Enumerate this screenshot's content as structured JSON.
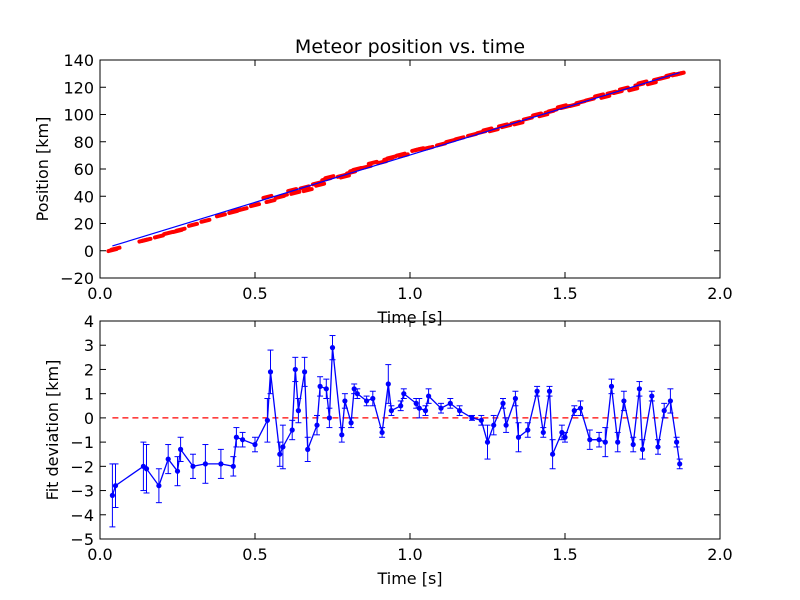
{
  "chart_data": [
    {
      "type": "scatter",
      "title": "Meteor position vs. time",
      "xlabel": "Time [s]",
      "ylabel": "Position [km]",
      "xlim": [
        0.0,
        2.0
      ],
      "ylim": [
        -20,
        140
      ],
      "xticks": [
        "0.0",
        "0.5",
        "1.0",
        "1.5",
        "2.0"
      ],
      "yticks": [
        "−20",
        "0",
        "20",
        "40",
        "60",
        "80",
        "100",
        "120",
        "140"
      ],
      "grid": false,
      "colors": {
        "measured": "#ff0000",
        "fit": "#0000ff"
      },
      "series": [
        {
          "kind": "points",
          "x": [
            0.04,
            0.05,
            0.14,
            0.15,
            0.19,
            0.22,
            0.25,
            0.26,
            0.3,
            0.34,
            0.39,
            0.43,
            0.44,
            0.46,
            0.5,
            0.54,
            0.55,
            0.58,
            0.59,
            0.62,
            0.63,
            0.66,
            0.67,
            0.7,
            0.71,
            0.73,
            0.74,
            0.78,
            0.79,
            0.81,
            0.82,
            0.83,
            0.86,
            0.88,
            0.91,
            0.93,
            0.94,
            0.97,
            0.98,
            1.02,
            1.03,
            1.05,
            1.06,
            1.1,
            1.13,
            1.16,
            1.2,
            1.23,
            1.25,
            1.27,
            1.3,
            1.31,
            1.34,
            1.35,
            1.38,
            1.41,
            1.43,
            1.45,
            1.46,
            1.49,
            1.5,
            1.53,
            1.55,
            1.58,
            1.61,
            1.63,
            1.65,
            1.67,
            1.69,
            1.72,
            1.74,
            1.75,
            1.78,
            1.8,
            1.82,
            1.84,
            1.86,
            1.87
          ],
          "y": [
            0.5,
            1.5,
            7.5,
            8,
            10.5,
            13,
            14.5,
            15.5,
            19,
            22,
            26,
            28.5,
            29.5,
            30.5,
            33.5,
            39.5,
            36.5,
            39.5,
            40.5,
            44.5,
            42.5,
            46.5,
            44.5,
            49.5,
            48.5,
            52.5,
            54,
            55,
            54.5,
            57.5,
            59,
            60,
            61.5,
            64.5,
            65,
            67.5,
            68.5,
            70.5,
            70,
            74,
            74.5,
            75,
            75.5,
            78,
            80.5,
            82.5,
            85,
            87,
            89,
            88.5,
            92,
            91.5,
            94,
            93.5,
            97,
            100,
            99.5,
            102,
            103,
            106,
            105.5,
            107,
            109,
            111,
            114,
            113,
            116,
            116.5,
            119,
            118.5,
            122,
            123.5,
            123,
            126,
            127,
            129,
            129.5,
            130
          ]
        },
        {
          "kind": "fit-line",
          "x": [
            0.04,
            1.87
          ],
          "y": [
            3.5,
            130.8
          ]
        }
      ]
    },
    {
      "type": "line",
      "xlabel": "Time [s]",
      "ylabel": "Fit deviation [km]",
      "xlim": [
        0.0,
        2.0
      ],
      "ylim": [
        -5,
        4
      ],
      "xticks": [
        "0.0",
        "0.5",
        "1.0",
        "1.5",
        "2.0"
      ],
      "yticks": [
        "−5",
        "−4",
        "−3",
        "−2",
        "−1",
        "0",
        "1",
        "2",
        "3",
        "4"
      ],
      "grid": false,
      "colors": {
        "deviation": "#0000ff",
        "zero": "#ff0000"
      },
      "reference_line_y": 0,
      "series": [
        {
          "kind": "deviation-with-error",
          "x": [
            0.04,
            0.05,
            0.14,
            0.15,
            0.19,
            0.22,
            0.25,
            0.26,
            0.3,
            0.34,
            0.39,
            0.43,
            0.44,
            0.46,
            0.5,
            0.54,
            0.55,
            0.58,
            0.59,
            0.62,
            0.63,
            0.64,
            0.66,
            0.67,
            0.7,
            0.71,
            0.73,
            0.74,
            0.75,
            0.78,
            0.79,
            0.81,
            0.82,
            0.83,
            0.86,
            0.88,
            0.91,
            0.93,
            0.94,
            0.97,
            0.98,
            1.02,
            1.03,
            1.05,
            1.06,
            1.1,
            1.13,
            1.16,
            1.2,
            1.23,
            1.25,
            1.27,
            1.3,
            1.31,
            1.34,
            1.35,
            1.38,
            1.41,
            1.43,
            1.45,
            1.46,
            1.49,
            1.5,
            1.53,
            1.55,
            1.58,
            1.61,
            1.63,
            1.65,
            1.67,
            1.69,
            1.72,
            1.74,
            1.75,
            1.78,
            1.8,
            1.82,
            1.84,
            1.86,
            1.87
          ],
          "y": [
            -3.2,
            -2.8,
            -2.0,
            -2.1,
            -2.8,
            -1.7,
            -2.2,
            -1.3,
            -2.0,
            -1.9,
            -1.9,
            -2.0,
            -0.8,
            -0.9,
            -1.1,
            -0.1,
            1.9,
            -1.5,
            -1.2,
            -0.5,
            2.0,
            0.3,
            1.9,
            -1.3,
            -0.3,
            1.3,
            1.2,
            0.0,
            2.9,
            -0.7,
            0.7,
            -0.2,
            1.2,
            1.0,
            0.7,
            0.8,
            -0.6,
            1.4,
            0.3,
            0.5,
            1.0,
            0.6,
            0.4,
            0.3,
            0.9,
            0.4,
            0.6,
            0.3,
            0.0,
            -0.1,
            -1.0,
            -0.3,
            0.6,
            -0.3,
            0.8,
            -0.8,
            -0.5,
            1.1,
            -0.6,
            1.1,
            -1.5,
            -0.6,
            -0.8,
            0.3,
            0.4,
            -0.9,
            -0.9,
            -1.0,
            1.3,
            -1.0,
            0.7,
            -1.1,
            1.2,
            -1.3,
            0.9,
            -1.2,
            0.3,
            0.7,
            -1.0,
            -1.9
          ],
          "error": [
            1.3,
            0.9,
            1.0,
            1.0,
            0.7,
            0.6,
            0.6,
            0.5,
            0.5,
            0.8,
            0.6,
            0.4,
            0.4,
            0.3,
            0.3,
            0.9,
            0.9,
            0.5,
            0.9,
            0.4,
            0.5,
            0.5,
            0.6,
            0.5,
            0.4,
            0.4,
            0.4,
            0.4,
            0.5,
            0.3,
            0.3,
            0.2,
            0.2,
            0.2,
            0.2,
            0.3,
            0.2,
            0.8,
            0.2,
            0.2,
            0.2,
            0.2,
            0.4,
            0.2,
            0.3,
            0.2,
            0.2,
            0.2,
            0.1,
            0.2,
            0.7,
            0.4,
            0.2,
            0.3,
            0.3,
            0.6,
            0.3,
            0.2,
            0.2,
            0.2,
            0.6,
            0.3,
            0.2,
            0.2,
            0.3,
            0.4,
            0.3,
            0.6,
            0.3,
            0.4,
            0.4,
            0.3,
            0.3,
            0.4,
            0.2,
            0.3,
            0.3,
            0.5,
            0.2,
            0.2
          ]
        }
      ]
    }
  ]
}
